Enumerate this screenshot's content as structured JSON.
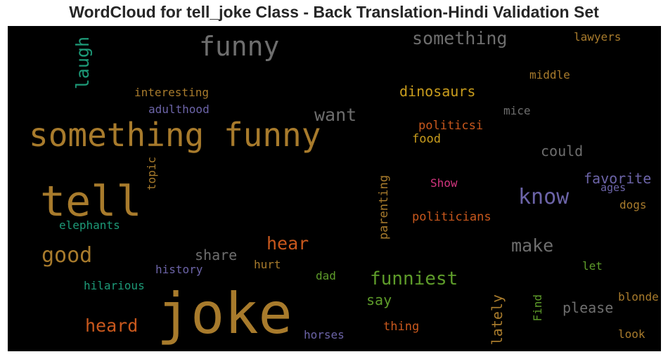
{
  "title": "WordCloud for tell_joke Class - Back Translation-Hindi Validation Set",
  "colors": {
    "background": "#000000",
    "brown": "#a87b2c",
    "gray": "#6e6e6e",
    "green": "#1d9a78",
    "orange": "#c9581d",
    "purple": "#6c64a8",
    "lime": "#5e9c2a",
    "gold": "#c99d1d",
    "pink": "#d2357e"
  },
  "words": [
    {
      "text": "something funny",
      "color": "brown"
    },
    {
      "text": "tell",
      "color": "brown"
    },
    {
      "text": "joke",
      "color": "brown"
    },
    {
      "text": "funny",
      "color": "gray"
    },
    {
      "text": "something",
      "color": "gray"
    },
    {
      "text": "laugh",
      "color": "green"
    },
    {
      "text": "lawyers",
      "color": "brown"
    },
    {
      "text": "middle",
      "color": "brown"
    },
    {
      "text": "interesting",
      "color": "brown"
    },
    {
      "text": "dinosaurs",
      "color": "gold"
    },
    {
      "text": "adulthood",
      "color": "purple"
    },
    {
      "text": "want",
      "color": "gray"
    },
    {
      "text": "mice",
      "color": "gray"
    },
    {
      "text": "politicsi",
      "color": "orange"
    },
    {
      "text": "food",
      "color": "gold"
    },
    {
      "text": "could",
      "color": "gray"
    },
    {
      "text": "topic",
      "color": "brown"
    },
    {
      "text": "favorite",
      "color": "purple"
    },
    {
      "text": "ages",
      "color": "purple"
    },
    {
      "text": "Show",
      "color": "pink"
    },
    {
      "text": "know",
      "color": "purple"
    },
    {
      "text": "dogs",
      "color": "brown"
    },
    {
      "text": "parenting",
      "color": "brown"
    },
    {
      "text": "elephants",
      "color": "green"
    },
    {
      "text": "politicians",
      "color": "orange"
    },
    {
      "text": "hear",
      "color": "orange"
    },
    {
      "text": "make",
      "color": "gray"
    },
    {
      "text": "good",
      "color": "brown"
    },
    {
      "text": "share",
      "color": "gray"
    },
    {
      "text": "history",
      "color": "purple"
    },
    {
      "text": "hurt",
      "color": "brown"
    },
    {
      "text": "let",
      "color": "lime"
    },
    {
      "text": "dad",
      "color": "lime"
    },
    {
      "text": "funniest",
      "color": "lime"
    },
    {
      "text": "hilarious",
      "color": "green"
    },
    {
      "text": "say",
      "color": "lime"
    },
    {
      "text": "Find",
      "color": "lime"
    },
    {
      "text": "please",
      "color": "gray"
    },
    {
      "text": "blonde",
      "color": "brown"
    },
    {
      "text": "lately",
      "color": "brown"
    },
    {
      "text": "heard",
      "color": "orange"
    },
    {
      "text": "thing",
      "color": "orange"
    },
    {
      "text": "horses",
      "color": "purple"
    },
    {
      "text": "look",
      "color": "brown"
    }
  ]
}
